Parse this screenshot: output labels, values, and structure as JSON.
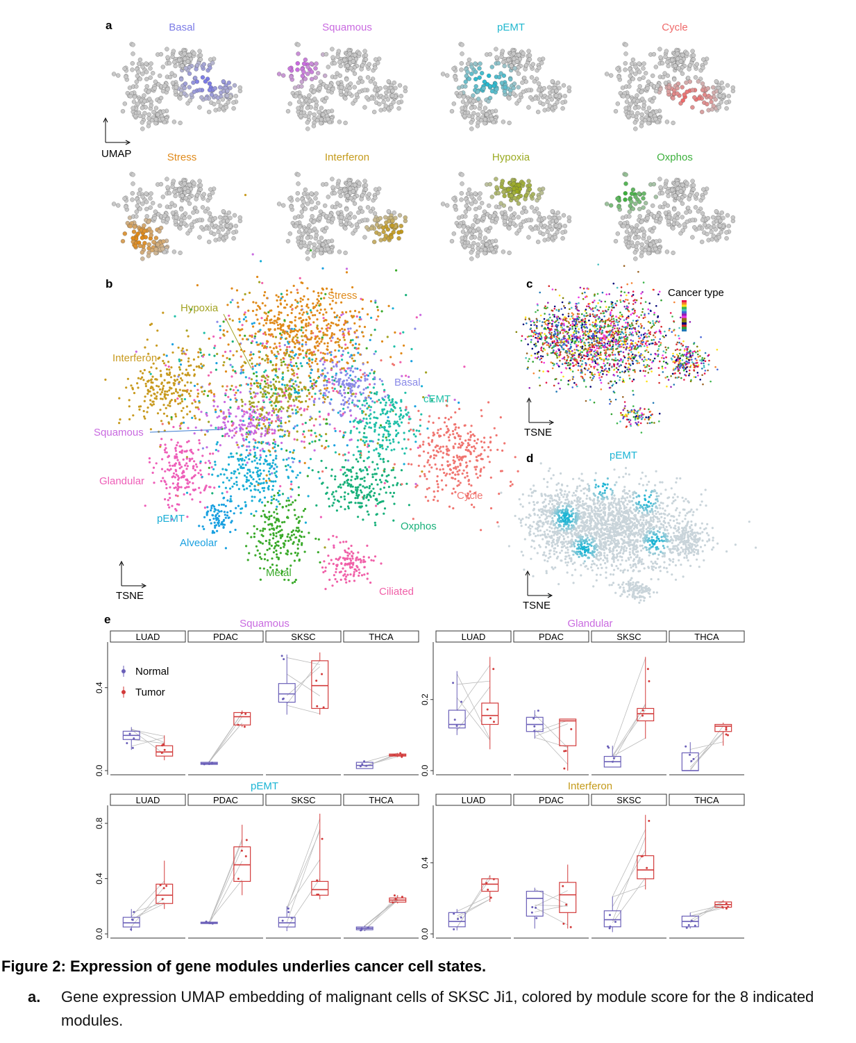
{
  "panel_a": {
    "letter": "a",
    "axis_label": "UMAP",
    "modules": [
      {
        "name": "Basal",
        "color": "#7b7be6"
      },
      {
        "name": "Squamous",
        "color": "#c96ae0"
      },
      {
        "name": "pEMT",
        "color": "#22b8cf"
      },
      {
        "name": "Cycle",
        "color": "#ef6a6a"
      },
      {
        "name": "Stress",
        "color": "#e08a1a"
      },
      {
        "name": "Interferon",
        "color": "#c49a1a"
      },
      {
        "name": "Hypoxia",
        "color": "#9aaa22"
      },
      {
        "name": "Oxphos",
        "color": "#3cb03c"
      }
    ]
  },
  "panel_b": {
    "letter": "b",
    "axis_label": "TSNE",
    "clusters": [
      {
        "name": "Stress",
        "color": "#e08a1a"
      },
      {
        "name": "Hypoxia",
        "color": "#a3a323"
      },
      {
        "name": "Interferon",
        "color": "#c89a1f"
      },
      {
        "name": "Basal",
        "color": "#8a8ae8"
      },
      {
        "name": "cEMT",
        "color": "#1fbfa8"
      },
      {
        "name": "Squamous",
        "color": "#c96ae0"
      },
      {
        "name": "Glandular",
        "color": "#ee5eb8"
      },
      {
        "name": "pEMT",
        "color": "#1aaed6"
      },
      {
        "name": "Alveolar",
        "color": "#1aa0e0"
      },
      {
        "name": "Metal",
        "color": "#3aaa2a"
      },
      {
        "name": "Oxphos",
        "color": "#18b07a"
      },
      {
        "name": "Cycle",
        "color": "#f07570"
      },
      {
        "name": "Ciliated",
        "color": "#f060a8"
      }
    ]
  },
  "panel_c": {
    "letter": "c",
    "legend_title": "Cancer type",
    "axis_label": "TSNE"
  },
  "panel_d": {
    "letter": "d",
    "title": "pEMT",
    "axis_label": "TSNE",
    "color": "#1ab4d4"
  },
  "panel_e": {
    "letter": "e",
    "legend": [
      {
        "name": "Normal",
        "color": "#6a5fb8"
      },
      {
        "name": "Tumor",
        "color": "#d23a3a"
      }
    ],
    "facet_labels": [
      "LUAD",
      "PDAC",
      "SKSC",
      "THCA"
    ],
    "chart_data": [
      {
        "type": "box",
        "title": "Squamous",
        "title_color": "#c96ae0",
        "ylim": [
          0,
          0.6
        ],
        "yticks": [
          "0.0",
          "0.4"
        ],
        "ytick_values": [
          0,
          0.4
        ],
        "series": [
          {
            "name": "Normal",
            "values": [
              {
                "q1": 0.15,
                "median": 0.17,
                "q3": 0.19,
                "lo": 0.1,
                "hi": 0.21
              },
              {
                "q1": 0.03,
                "median": 0.035,
                "q3": 0.04,
                "lo": 0.03,
                "hi": 0.045
              },
              {
                "q1": 0.33,
                "median": 0.37,
                "q3": 0.42,
                "lo": 0.27,
                "hi": 0.56
              },
              {
                "q1": 0.01,
                "median": 0.025,
                "q3": 0.04,
                "lo": 0.01,
                "hi": 0.045
              }
            ]
          },
          {
            "name": "Tumor",
            "values": [
              {
                "q1": 0.07,
                "median": 0.09,
                "q3": 0.12,
                "lo": 0.05,
                "hi": 0.17
              },
              {
                "q1": 0.22,
                "median": 0.26,
                "q3": 0.28,
                "lo": 0.21,
                "hi": 0.29
              },
              {
                "q1": 0.3,
                "median": 0.41,
                "q3": 0.53,
                "lo": 0.27,
                "hi": 0.57
              },
              {
                "q1": 0.07,
                "median": 0.075,
                "q3": 0.08,
                "lo": 0.065,
                "hi": 0.085
              }
            ]
          }
        ]
      },
      {
        "type": "box",
        "title": "Glandular",
        "title_color": "#c96ae0",
        "ylim": [
          0,
          0.35
        ],
        "yticks": [
          "0.0",
          "0.2"
        ],
        "ytick_values": [
          0,
          0.2
        ],
        "series": [
          {
            "name": "Normal",
            "values": [
              {
                "q1": 0.12,
                "median": 0.13,
                "q3": 0.17,
                "lo": 0.1,
                "hi": 0.28
              },
              {
                "q1": 0.11,
                "median": 0.13,
                "q3": 0.15,
                "lo": 0.09,
                "hi": 0.17
              },
              {
                "q1": 0.01,
                "median": 0.025,
                "q3": 0.04,
                "lo": 0.01,
                "hi": 0.07
              },
              {
                "q1": 0.0,
                "median": 0.0,
                "q3": 0.05,
                "lo": 0.0,
                "hi": 0.08
              }
            ]
          },
          {
            "name": "Tumor",
            "values": [
              {
                "q1": 0.13,
                "median": 0.155,
                "q3": 0.19,
                "lo": 0.06,
                "hi": 0.32
              },
              {
                "q1": 0.07,
                "median": 0.14,
                "q3": 0.145,
                "lo": 0.0,
                "hi": 0.145
              },
              {
                "q1": 0.14,
                "median": 0.16,
                "q3": 0.175,
                "lo": 0.09,
                "hi": 0.32
              },
              {
                "q1": 0.11,
                "median": 0.125,
                "q3": 0.13,
                "lo": 0.07,
                "hi": 0.135
              }
            ]
          }
        ]
      },
      {
        "type": "box",
        "title": "pEMT",
        "title_color": "#1ab4d4",
        "ylim": [
          0,
          0.9
        ],
        "yticks": [
          "0.0",
          "0.4",
          "0.8"
        ],
        "ytick_values": [
          0,
          0.4,
          0.8
        ],
        "series": [
          {
            "name": "Normal",
            "values": [
              {
                "q1": 0.05,
                "median": 0.08,
                "q3": 0.12,
                "lo": 0.02,
                "hi": 0.18
              },
              {
                "q1": 0.075,
                "median": 0.08,
                "q3": 0.085,
                "lo": 0.07,
                "hi": 0.09
              },
              {
                "q1": 0.05,
                "median": 0.08,
                "q3": 0.12,
                "lo": 0.02,
                "hi": 0.2
              },
              {
                "q1": 0.03,
                "median": 0.04,
                "q3": 0.05,
                "lo": 0.02,
                "hi": 0.06
              }
            ]
          },
          {
            "name": "Tumor",
            "values": [
              {
                "q1": 0.22,
                "median": 0.28,
                "q3": 0.36,
                "lo": 0.18,
                "hi": 0.53
              },
              {
                "q1": 0.38,
                "median": 0.5,
                "q3": 0.63,
                "lo": 0.28,
                "hi": 0.79
              },
              {
                "q1": 0.28,
                "median": 0.32,
                "q3": 0.38,
                "lo": 0.25,
                "hi": 0.87
              },
              {
                "q1": 0.23,
                "median": 0.245,
                "q3": 0.26,
                "lo": 0.22,
                "hi": 0.28
              }
            ]
          }
        ]
      },
      {
        "type": "box",
        "title": "Interferon",
        "title_color": "#c49a1a",
        "ylim": [
          0,
          0.7
        ],
        "yticks": [
          "0.0",
          "0.4"
        ],
        "ytick_values": [
          0,
          0.4
        ],
        "series": [
          {
            "name": "Normal",
            "values": [
              {
                "q1": 0.04,
                "median": 0.07,
                "q3": 0.12,
                "lo": 0.02,
                "hi": 0.14
              },
              {
                "q1": 0.1,
                "median": 0.2,
                "q3": 0.24,
                "lo": 0.03,
                "hi": 0.26
              },
              {
                "q1": 0.04,
                "median": 0.08,
                "q3": 0.13,
                "lo": 0.01,
                "hi": 0.21
              },
              {
                "q1": 0.04,
                "median": 0.07,
                "q3": 0.1,
                "lo": 0.03,
                "hi": 0.12
              }
            ]
          },
          {
            "name": "Tumor",
            "values": [
              {
                "q1": 0.24,
                "median": 0.28,
                "q3": 0.31,
                "lo": 0.18,
                "hi": 0.33
              },
              {
                "q1": 0.12,
                "median": 0.22,
                "q3": 0.29,
                "lo": 0.03,
                "hi": 0.39
              },
              {
                "q1": 0.31,
                "median": 0.36,
                "q3": 0.44,
                "lo": 0.25,
                "hi": 0.67
              },
              {
                "q1": 0.15,
                "median": 0.165,
                "q3": 0.18,
                "lo": 0.14,
                "hi": 0.19
              }
            ]
          }
        ]
      }
    ]
  },
  "caption": {
    "title": "Figure 2: Expression of gene modules underlies cancer cell states.",
    "items": [
      {
        "label": "a.",
        "text": "Gene expression UMAP embedding of malignant cells of SKSC Ji1, colored by module score for the 8 indicated modules."
      }
    ]
  }
}
